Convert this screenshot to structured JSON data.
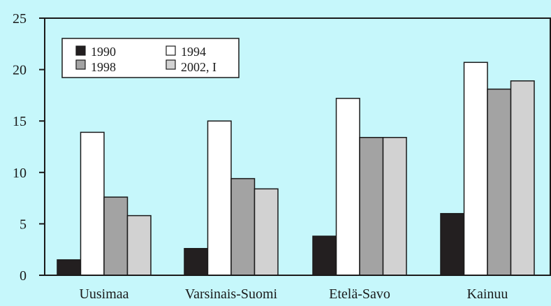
{
  "colors": {
    "background": "#c6f7fb",
    "axis": "#1a1a1a"
  },
  "chart_data": {
    "type": "bar",
    "categories": [
      "Uusimaa",
      "Varsinais-Suomi",
      "Etelä-Savo",
      "Kainuu"
    ],
    "series": [
      {
        "name": "1990",
        "color": "#231f20",
        "values": [
          1.5,
          2.6,
          3.8,
          6.0
        ]
      },
      {
        "name": "1994",
        "color": "#ffffff",
        "values": [
          13.9,
          15.0,
          17.2,
          20.7
        ]
      },
      {
        "name": "1998",
        "color": "#a3a3a3",
        "values": [
          7.6,
          9.4,
          13.4,
          18.1
        ]
      },
      {
        "name": "2002, I",
        "color": "#d2d2d2",
        "values": [
          5.8,
          8.4,
          13.4,
          18.9
        ]
      }
    ],
    "title": "",
    "xlabel": "",
    "ylabel": "",
    "ylim": [
      0,
      25
    ],
    "yticks": [
      0,
      5,
      10,
      15,
      20,
      25
    ],
    "grid": false,
    "legend_position": "top-left",
    "legend_layout": "2 columns"
  }
}
